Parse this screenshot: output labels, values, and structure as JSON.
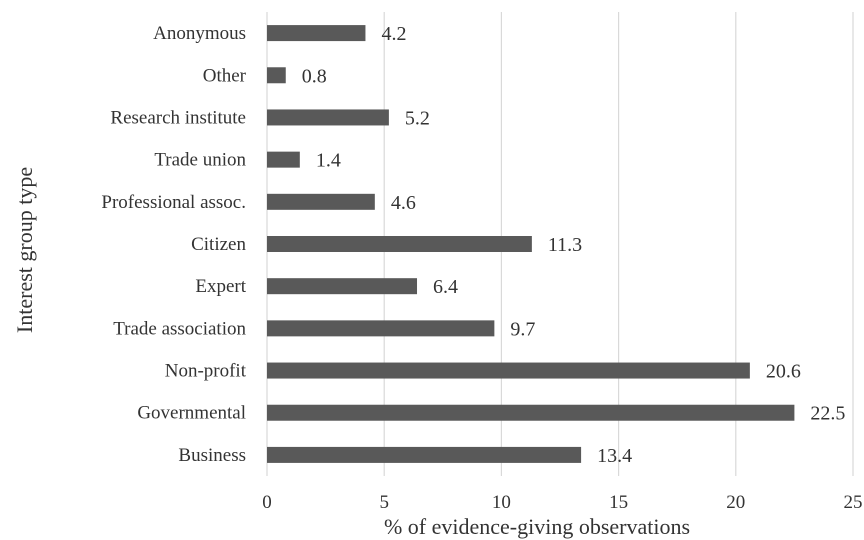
{
  "chart_data": {
    "type": "bar",
    "orientation": "horizontal",
    "categories": [
      "Business",
      "Governmental",
      "Non-profit",
      "Trade association",
      "Expert",
      "Citizen",
      "Professional assoc.",
      "Trade union",
      "Research institute",
      "Other",
      "Anonymous"
    ],
    "values": [
      13.4,
      22.5,
      20.6,
      9.7,
      6.4,
      11.3,
      4.6,
      1.4,
      5.2,
      0.8,
      4.2
    ],
    "value_labels": [
      "13.4",
      "22.5",
      "20.6",
      "9.7",
      "6.4",
      "11.3",
      "4.6",
      "1.4",
      "5.2",
      "0.8",
      "4.2"
    ],
    "xlabel": "% of evidence-giving observations",
    "ylabel": "Interest group type",
    "xlim": [
      0,
      25
    ],
    "xticks": [
      0,
      5,
      10,
      15,
      20,
      25
    ],
    "xtick_labels": [
      "0",
      "5",
      "10",
      "15",
      "20",
      "25"
    ],
    "grid": true,
    "bar_color": "#595959",
    "grid_color": "#d9d9d9"
  }
}
